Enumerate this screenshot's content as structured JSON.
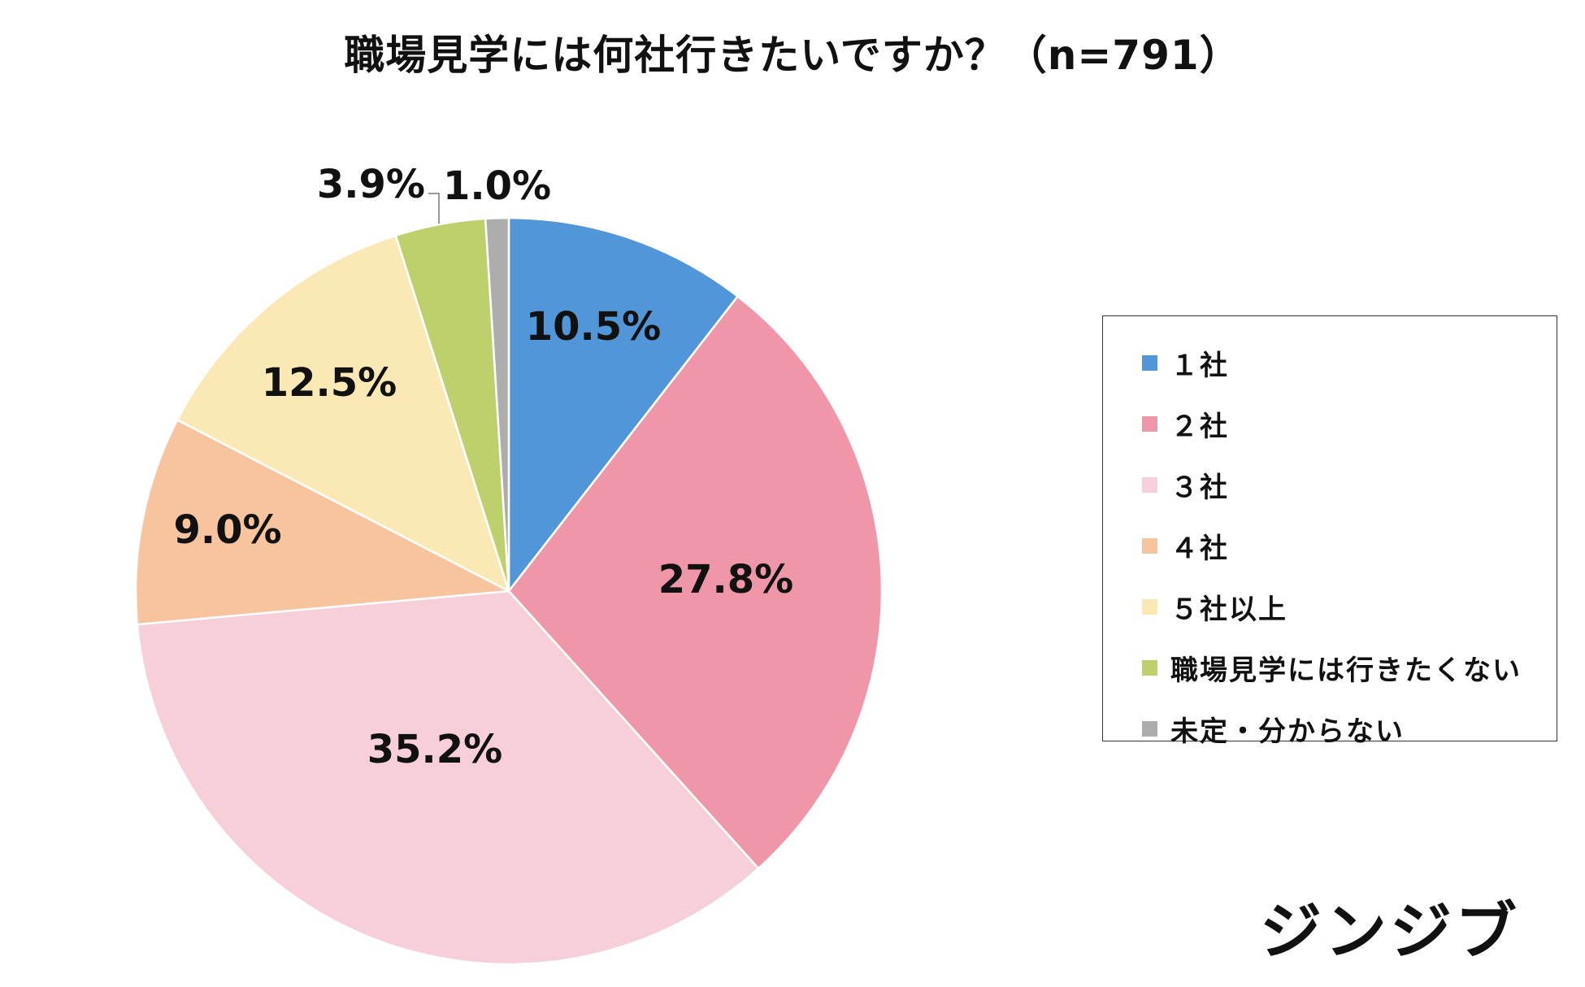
{
  "title": "職場見学には何社行きたいですか？（n=791）",
  "chart_data": {
    "type": "pie",
    "start_angle_deg": 0,
    "direction": "clockwise",
    "slices": [
      {
        "label": "１社",
        "value": 10.5,
        "display": "10.5%",
        "color": "#5196D9"
      },
      {
        "label": "２社",
        "value": 27.8,
        "display": "27.8%",
        "color": "#EF97A8"
      },
      {
        "label": "３社",
        "value": 35.2,
        "display": "35.2%",
        "color": "#F7CFD8"
      },
      {
        "label": "４社",
        "value": 9.0,
        "display": "9.0%",
        "color": "#F8C49E"
      },
      {
        "label": "５社以上",
        "value": 12.5,
        "display": "12.5%",
        "color": "#FAE9B5"
      },
      {
        "label": "職場見学には行きたくない",
        "value": 3.9,
        "display": "3.9%",
        "color": "#BDD06B"
      },
      {
        "label": "未定・分からない",
        "value": 1.0,
        "display": "1.0%",
        "color": "#ADADAD"
      }
    ],
    "legend_position": "right"
  },
  "brand": "ジンジブ"
}
